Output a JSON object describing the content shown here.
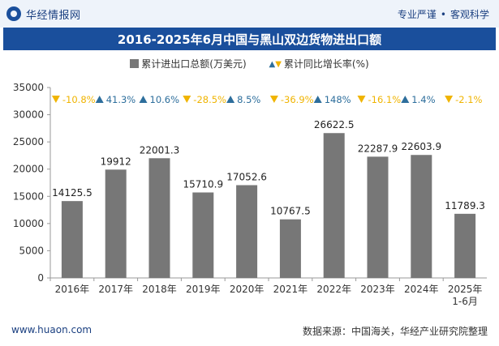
{
  "header": {
    "brand": "华经情报网",
    "tagline_left": "专业严谨",
    "tagline_right": "客观科学"
  },
  "title": "2016-2025年6月中国与黑山双边货物进出口额",
  "legend": {
    "bar_label": "累计进出口总额(万美元)",
    "growth_label": "累计同比增长率(%)"
  },
  "footer": {
    "website": "www.huaon.com",
    "source": "数据来源：中国海关，华经产业研究院整理"
  },
  "colors": {
    "bar": "#777777",
    "up": "#2d6e9c",
    "down": "#f0b400",
    "title_bg": "#1a4f9c"
  },
  "chart_data": {
    "type": "bar",
    "categories": [
      "2016年",
      "2017年",
      "2018年",
      "2019年",
      "2020年",
      "2021年",
      "2022年",
      "2023年",
      "2024年",
      "2025年\n1-6月"
    ],
    "series": [
      {
        "name": "累计进出口总额(万美元)",
        "values": [
          14125.5,
          19912,
          22001.3,
          15710.9,
          17052.6,
          10767.5,
          26622.5,
          22287.9,
          22603.9,
          11789.3
        ]
      },
      {
        "name": "累计同比增长率(%)",
        "values": [
          -10.8,
          41.3,
          10.6,
          -28.5,
          8.5,
          -36.9,
          148,
          -16.1,
          1.4,
          -2.1
        ]
      }
    ],
    "value_labels": [
      "14125.5",
      "19912",
      "22001.3",
      "15710.9",
      "17052.6",
      "10767.5",
      "26622.5",
      "22287.9",
      "22603.9",
      "11789.3"
    ],
    "growth_labels": [
      "-10.8%",
      "41.3%",
      "10.6%",
      "-28.5%",
      "8.5%",
      "-36.9%",
      "148%",
      "-16.1%",
      "1.4%",
      "-2.1%"
    ],
    "ylim": [
      0,
      35000
    ],
    "yticks": [
      0,
      5000,
      10000,
      15000,
      20000,
      25000,
      30000,
      35000
    ],
    "grid": false,
    "legend_position": "top"
  }
}
